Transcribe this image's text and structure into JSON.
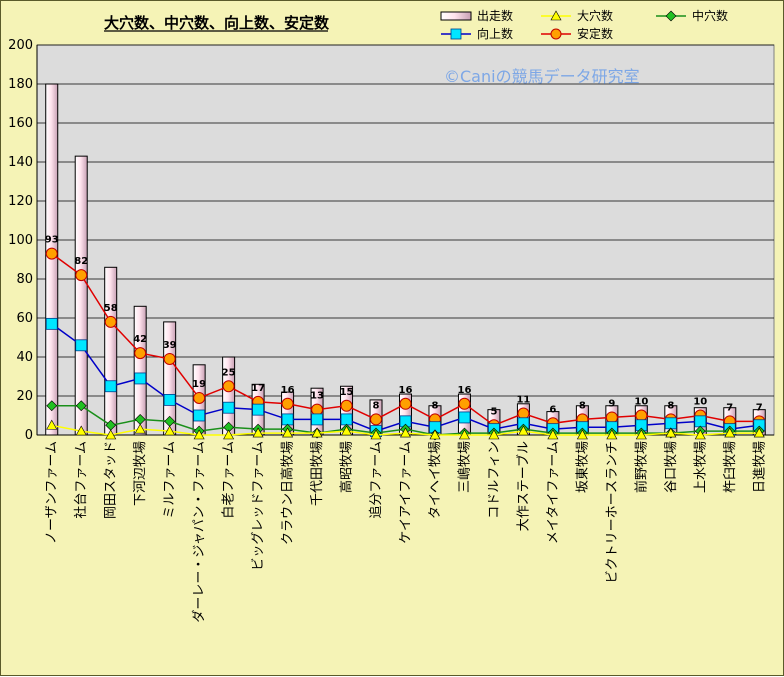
{
  "chart_data": {
    "type": "bar",
    "title": "大穴数、中穴数、向上数、安定数",
    "watermark": "©Caniの競馬データ研究室",
    "ylim": [
      0,
      200
    ],
    "yticks": [
      "0",
      "20",
      "40",
      "60",
      "80",
      "100",
      "120",
      "140",
      "160",
      "180",
      "200"
    ],
    "grid": true,
    "legend_position": "top-right",
    "categories": [
      "ノーザンファーム",
      "社台ファーム",
      "岡田スタッド",
      "下河辺牧場",
      "ミルファーム",
      "ダーレー・ジャパン・ファーム",
      "白老ファーム",
      "ビッグレッドファーム",
      "クラウン日高牧場",
      "千代田牧場",
      "高昭牧場",
      "追分ファーム",
      "ケイアイファーム",
      "タイヘイ牧場",
      "三嶋牧場",
      "コドルフィン",
      "大作ステーブル",
      "メイタイファーム",
      "坂東牧場",
      "ビクトリーホースランチ",
      "前野牧場",
      "谷口牧場",
      "上水牧場",
      "杵臼牧場",
      "日進牧場"
    ],
    "series": [
      {
        "name": "出走数",
        "type": "bar",
        "color": "#ffd8e6",
        "values": [
          180,
          143,
          86,
          66,
          58,
          36,
          40,
          26,
          22,
          24,
          25,
          18,
          21,
          15,
          21,
          13,
          16,
          12,
          15,
          15,
          15,
          15,
          14,
          14,
          13
        ]
      },
      {
        "name": "大穴数",
        "type": "line",
        "color": "#ffff00",
        "values": [
          5,
          2,
          0,
          3,
          2,
          0,
          0,
          1,
          1,
          1,
          2,
          0,
          1,
          0,
          0,
          0,
          2,
          0,
          0,
          0,
          0,
          1,
          0,
          1,
          1
        ]
      },
      {
        "name": "中穴数",
        "type": "line",
        "color": "#1a8f1a",
        "values": [
          15,
          15,
          5,
          8,
          7,
          2,
          4,
          3,
          3,
          1,
          3,
          1,
          3,
          0,
          1,
          1,
          3,
          1,
          1,
          1,
          1,
          1,
          2,
          2,
          2
        ]
      },
      {
        "name": "向上数",
        "type": "line",
        "color": "#0000c8",
        "values": [
          57,
          46,
          25,
          29,
          18,
          10,
          14,
          13,
          8,
          8,
          8,
          2,
          7,
          4,
          9,
          3,
          6,
          3,
          4,
          4,
          5,
          6,
          7,
          3,
          5
        ]
      },
      {
        "name": "安定数",
        "type": "line",
        "color": "#e00000",
        "values": [
          93,
          82,
          58,
          42,
          39,
          19,
          25,
          17,
          16,
          13,
          15,
          8,
          16,
          8,
          16,
          5,
          11,
          6,
          8,
          9,
          10,
          8,
          10,
          7,
          7
        ]
      }
    ],
    "data_labels": [
      "93",
      "82",
      "58",
      "42",
      "39",
      "19",
      "25",
      "17",
      "16",
      "13",
      "15",
      "8",
      "16",
      "8",
      "16",
      "5",
      "11",
      "6",
      "8",
      "9",
      "10",
      "8",
      "10",
      "7",
      "7"
    ]
  }
}
